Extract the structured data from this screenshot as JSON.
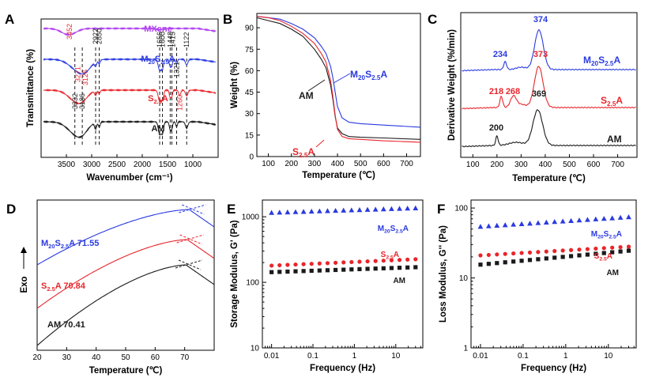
{
  "colors": {
    "black": "#1a1a1a",
    "red": "#e8252b",
    "blue": "#2a3ae0",
    "purple": "#b040f0"
  },
  "chart_data": [
    {
      "panel": "A",
      "type": "line",
      "xlabel": "Wavenumber (cm⁻¹)",
      "ylabel": "Transmittance (%)",
      "xlim": [
        4000,
        500
      ],
      "xticks": [
        3500,
        3000,
        2500,
        2000,
        1500,
        1000
      ],
      "series": [
        {
          "name": "MXene",
          "color": "purple"
        },
        {
          "name": "M20S2.5A",
          "color": "blue"
        },
        {
          "name": "S2.5A",
          "color": "red"
        },
        {
          "name": "AM",
          "color": "black"
        }
      ],
      "peak_labels": [
        {
          "text": "3452",
          "color": "red",
          "x": 3452
        },
        {
          "text": "3271",
          "color": "red",
          "x": 3271
        },
        {
          "text": "3126",
          "color": "red",
          "x": 3126
        },
        {
          "text": "2922",
          "color": "black",
          "x": 2922
        },
        {
          "text": "2850",
          "color": "black",
          "x": 2850
        },
        {
          "text": "1656",
          "color": "black",
          "x": 1656
        },
        {
          "text": "1600",
          "color": "black",
          "x": 1600
        },
        {
          "text": "1448",
          "color": "black",
          "x": 1448
        },
        {
          "text": "1415",
          "color": "black",
          "x": 1415
        },
        {
          "text": "1321",
          "color": "black",
          "x": 1321
        },
        {
          "text": "1122",
          "color": "black",
          "x": 1122
        },
        {
          "text": "3332",
          "color": "black",
          "x": 3332
        },
        {
          "text": "3186",
          "color": "black",
          "x": 3186
        },
        {
          "text": "1260",
          "color": "red",
          "x": 1260
        }
      ]
    },
    {
      "panel": "B",
      "type": "line",
      "xlabel": "Temperature (℃)",
      "ylabel": "Weight (%)",
      "xlim": [
        50,
        760
      ],
      "ylim": [
        0,
        100
      ],
      "xticks": [
        100,
        200,
        300,
        400,
        500,
        600,
        700
      ],
      "yticks": [
        0,
        15,
        30,
        45,
        60,
        75,
        90
      ],
      "series": [
        {
          "name": "AM",
          "color": "black",
          "x": [
            50,
            100,
            150,
            200,
            250,
            300,
            330,
            350,
            370,
            380,
            390,
            400,
            420,
            450,
            500,
            600,
            760
          ],
          "y": [
            97,
            95,
            93,
            89,
            84,
            75,
            68,
            62,
            50,
            40,
            28,
            20,
            16,
            14,
            13.5,
            13,
            12
          ]
        },
        {
          "name": "M20S2.5A",
          "color": "blue",
          "x": [
            50,
            100,
            150,
            200,
            250,
            300,
            330,
            350,
            370,
            380,
            390,
            400,
            420,
            450,
            500,
            600,
            760
          ],
          "y": [
            98,
            97,
            96,
            93,
            89,
            83,
            77,
            72,
            63,
            55,
            45,
            35,
            27,
            24,
            23,
            22,
            20.5
          ]
        },
        {
          "name": "S2.5A",
          "color": "red",
          "x": [
            50,
            100,
            150,
            200,
            250,
            300,
            330,
            350,
            370,
            380,
            390,
            400,
            420,
            450,
            500,
            600,
            760
          ],
          "y": [
            98,
            97,
            95,
            91,
            86,
            79,
            72,
            66,
            53,
            42,
            29,
            19,
            14,
            12.5,
            12,
            11,
            10
          ]
        }
      ]
    },
    {
      "panel": "C",
      "type": "line",
      "xlabel": "Temperature (℃)",
      "ylabel": "Derivative Weight (%/min)",
      "xlim": [
        50,
        780
      ],
      "xticks": [
        100,
        200,
        300,
        400,
        500,
        600,
        700
      ],
      "series": [
        {
          "name": "M20S2.5A",
          "color": "blue",
          "peaks": [
            234,
            374
          ]
        },
        {
          "name": "S2.5A",
          "color": "red",
          "peaks": [
            218,
            268,
            373
          ]
        },
        {
          "name": "AM",
          "color": "black",
          "peaks": [
            200,
            369
          ]
        }
      ],
      "peak_labels": [
        {
          "text": "234",
          "color": "blue"
        },
        {
          "text": "374",
          "color": "blue"
        },
        {
          "text": "218",
          "color": "red"
        },
        {
          "text": "268",
          "color": "red"
        },
        {
          "text": "373",
          "color": "red"
        },
        {
          "text": "200",
          "color": "black"
        },
        {
          "text": "369",
          "color": "black"
        }
      ]
    },
    {
      "panel": "D",
      "type": "line",
      "xlabel": "Temperature (℃)",
      "ylabel": "Exo",
      "xlim": [
        20,
        80
      ],
      "xticks": [
        20,
        30,
        40,
        50,
        60,
        70
      ],
      "series": [
        {
          "name": "M20S2.5A 71.55",
          "color": "blue",
          "value": 71.55
        },
        {
          "name": "S2.5A 70.84",
          "color": "red",
          "value": 70.84
        },
        {
          "name": "AM 70.41",
          "color": "black",
          "value": 70.41
        }
      ]
    },
    {
      "panel": "E",
      "type": "scatter",
      "xlabel": "Frequency (Hz)",
      "ylabel": "Storage Modulus, G' (Pa)",
      "xscale": "log",
      "yscale": "log",
      "xlim": [
        0.006,
        45
      ],
      "ylim": [
        10,
        1800
      ],
      "xticks": [
        0.01,
        0.1,
        1,
        10
      ],
      "xtick_labels": [
        "0.01",
        "0.1",
        "1",
        "10"
      ],
      "yticks": [
        10,
        100,
        1000
      ],
      "ytick_labels": [
        "10",
        "100",
        "1000"
      ],
      "series": [
        {
          "name": "M20S2.5A",
          "color": "blue",
          "marker": "triangle",
          "y_start": 1150,
          "y_end": 1350
        },
        {
          "name": "S2.5A",
          "color": "red",
          "marker": "circle",
          "y_start": 180,
          "y_end": 225
        },
        {
          "name": "AM",
          "color": "black",
          "marker": "square",
          "y_start": 143,
          "y_end": 170
        }
      ]
    },
    {
      "panel": "F",
      "type": "scatter",
      "xlabel": "Frequency (Hz)",
      "ylabel": "Loss Modulus, G'' (Pa)",
      "xscale": "log",
      "yscale": "log",
      "xlim": [
        0.006,
        45
      ],
      "ylim": [
        1,
        130
      ],
      "xticks": [
        0.01,
        0.1,
        1,
        10
      ],
      "xtick_labels": [
        "0.01",
        "0.1",
        "1",
        "10"
      ],
      "yticks": [
        1,
        10,
        100
      ],
      "ytick_labels": [
        "1",
        "10",
        "100"
      ],
      "series": [
        {
          "name": "M20S2.5A",
          "color": "blue",
          "marker": "triangle",
          "y_start": 54,
          "y_end": 74
        },
        {
          "name": "S2.5A",
          "color": "red",
          "marker": "circle",
          "y_start": 21,
          "y_end": 28
        },
        {
          "name": "AM",
          "color": "black",
          "marker": "square",
          "y_start": 15.5,
          "y_end": 24.5
        }
      ]
    }
  ]
}
